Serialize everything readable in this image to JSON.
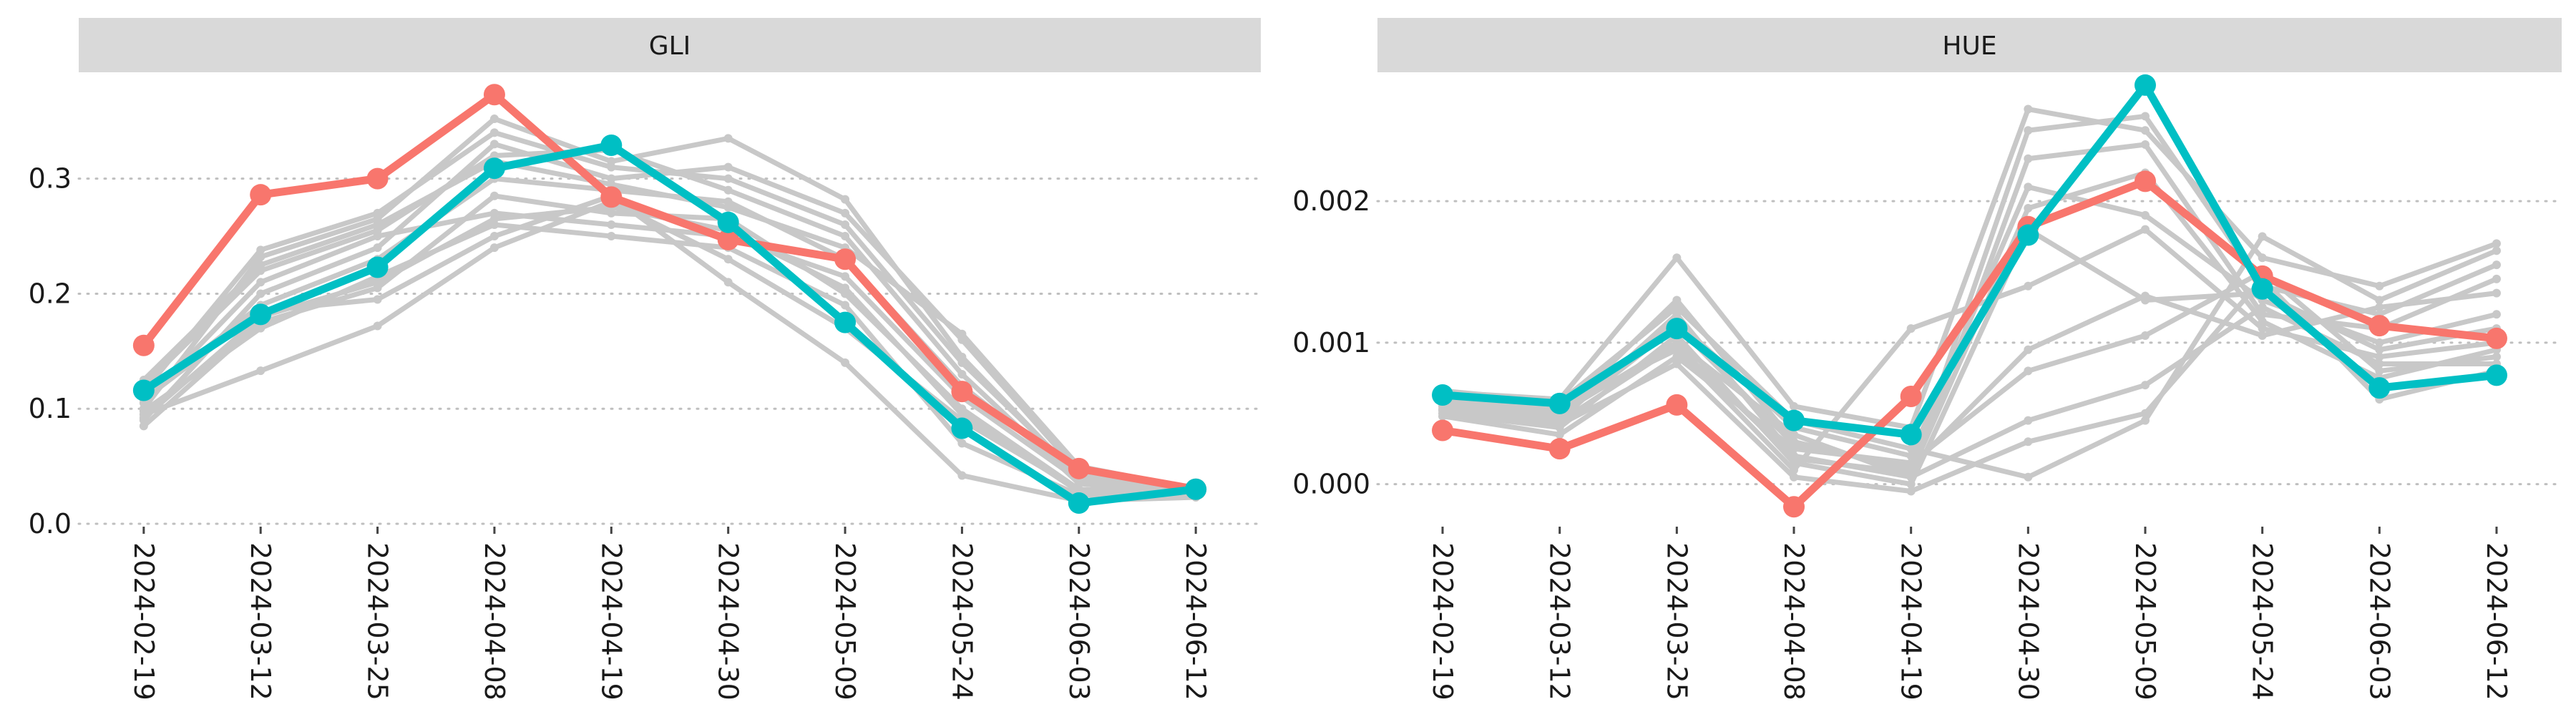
{
  "chart_data": [
    {
      "type": "line",
      "title": "GLI",
      "x": [
        "2024-02-19",
        "2024-03-12",
        "2024-03-25",
        "2024-04-08",
        "2024-04-19",
        "2024-04-30",
        "2024-05-09",
        "2024-05-24",
        "2024-06-03",
        "2024-06-12"
      ],
      "ylim": [
        0,
        0.385
      ],
      "yticks": [
        0.0,
        0.1,
        0.2,
        0.3
      ],
      "ytick_labels": [
        "0.0",
        "0.1",
        "0.2",
        "0.3"
      ],
      "grid": "horizontal dotted",
      "highlight_series": [
        {
          "color": "#F8766D",
          "values": [
            0.155,
            0.286,
            0.3,
            0.373,
            0.284,
            0.247,
            0.23,
            0.115,
            0.048,
            0.03
          ]
        },
        {
          "color": "#00BFC4",
          "values": [
            0.116,
            0.182,
            0.223,
            0.309,
            0.329,
            0.262,
            0.175,
            0.083,
            0.018,
            0.03
          ]
        }
      ],
      "background_color": "#c8c8c8",
      "background_series": [
        [
          0.1,
          0.232,
          0.265,
          0.352,
          0.315,
          0.335,
          0.282,
          0.145,
          0.04,
          0.028
        ],
        [
          0.09,
          0.2,
          0.24,
          0.33,
          0.3,
          0.31,
          0.27,
          0.16,
          0.045,
          0.03
        ],
        [
          0.12,
          0.22,
          0.255,
          0.32,
          0.325,
          0.29,
          0.25,
          0.13,
          0.035,
          0.025
        ],
        [
          0.11,
          0.19,
          0.23,
          0.3,
          0.29,
          0.28,
          0.23,
          0.12,
          0.04,
          0.027
        ],
        [
          0.085,
          0.175,
          0.205,
          0.285,
          0.27,
          0.265,
          0.2,
          0.1,
          0.03,
          0.025
        ],
        [
          0.095,
          0.133,
          0.172,
          0.24,
          0.28,
          0.23,
          0.17,
          0.09,
          0.03,
          0.026
        ],
        [
          0.105,
          0.21,
          0.25,
          0.27,
          0.26,
          0.25,
          0.215,
          0.11,
          0.038,
          0.028
        ],
        [
          0.115,
          0.238,
          0.27,
          0.34,
          0.31,
          0.3,
          0.26,
          0.14,
          0.042,
          0.029
        ],
        [
          0.098,
          0.17,
          0.215,
          0.26,
          0.25,
          0.24,
          0.19,
          0.07,
          0.025,
          0.024
        ],
        [
          0.108,
          0.185,
          0.195,
          0.25,
          0.285,
          0.21,
          0.14,
          0.042,
          0.02,
          0.023
        ],
        [
          0.125,
          0.225,
          0.26,
          0.315,
          0.295,
          0.275,
          0.24,
          0.165,
          0.05,
          0.03
        ],
        [
          0.092,
          0.18,
          0.21,
          0.265,
          0.275,
          0.255,
          0.205,
          0.095,
          0.028,
          0.026
        ]
      ]
    },
    {
      "type": "line",
      "title": "HUE",
      "x": [
        "2024-02-19",
        "2024-03-12",
        "2024-03-25",
        "2024-04-08",
        "2024-04-19",
        "2024-04-30",
        "2024-05-09",
        "2024-05-24",
        "2024-06-03",
        "2024-06-12"
      ],
      "ylim": [
        -0.00028,
        0.00285
      ],
      "yticks": [
        0.0,
        0.001,
        0.002
      ],
      "ytick_labels": [
        "0.000",
        "0.001",
        "0.002"
      ],
      "grid": "horizontal dotted",
      "highlight_series": [
        {
          "color": "#F8766D",
          "values": [
            0.00038,
            0.00025,
            0.00056,
            -0.00016,
            0.00062,
            0.00182,
            0.00214,
            0.00147,
            0.00112,
            0.00103
          ]
        },
        {
          "color": "#00BFC4",
          "values": [
            0.00063,
            0.00057,
            0.0011,
            0.00045,
            0.00035,
            0.00176,
            0.00282,
            0.00138,
            0.00068,
            0.00077
          ]
        }
      ],
      "background_color": "#c8c8c8",
      "background_series": [
        [
          0.00065,
          0.0006,
          0.0016,
          0.00055,
          0.0004,
          0.00265,
          0.0025,
          0.0016,
          0.0014,
          0.0017
        ],
        [
          0.0006,
          0.0005,
          0.0013,
          0.0003,
          0.0001,
          0.0025,
          0.0026,
          0.0014,
          0.0012,
          0.00155
        ],
        [
          0.00055,
          0.00045,
          0.0012,
          0.0002,
          5e-05,
          0.0023,
          0.0024,
          0.0012,
          0.0011,
          0.00145
        ],
        [
          0.00058,
          0.00052,
          0.00115,
          0.0004,
          0.0002,
          0.0021,
          0.0019,
          0.0013,
          0.001,
          0.0012
        ],
        [
          0.0005,
          0.0004,
          0.00105,
          0.00015,
          0.0,
          0.0018,
          0.0013,
          0.00135,
          0.00095,
          0.0011
        ],
        [
          0.00062,
          0.00055,
          0.00095,
          0.0001,
          0.0011,
          0.0014,
          0.0018,
          0.0011,
          0.0009,
          0.001
        ],
        [
          0.00048,
          0.00035,
          0.0009,
          0.00025,
          0.00015,
          0.0008,
          0.00105,
          0.0015,
          0.0008,
          0.0009
        ],
        [
          0.00057,
          0.0005,
          0.001,
          0.00035,
          5e-05,
          0.00045,
          0.0007,
          0.00125,
          0.00085,
          0.00085
        ],
        [
          0.00053,
          0.00042,
          0.00085,
          5e-05,
          -5e-05,
          0.0003,
          0.0005,
          0.00145,
          0.0006,
          0.0008
        ],
        [
          0.00066,
          0.00058,
          0.00125,
          0.00045,
          0.00025,
          5e-05,
          0.00045,
          0.00175,
          0.0013,
          0.00165
        ],
        [
          0.00059,
          0.00047,
          0.00112,
          0.00028,
          0.00012,
          0.00095,
          0.00133,
          0.00105,
          0.00125,
          0.00135
        ],
        [
          0.00052,
          0.00044,
          0.00098,
          0.00018,
          8e-05,
          0.00195,
          0.0022,
          0.00115,
          0.00075,
          0.00095
        ]
      ]
    }
  ]
}
